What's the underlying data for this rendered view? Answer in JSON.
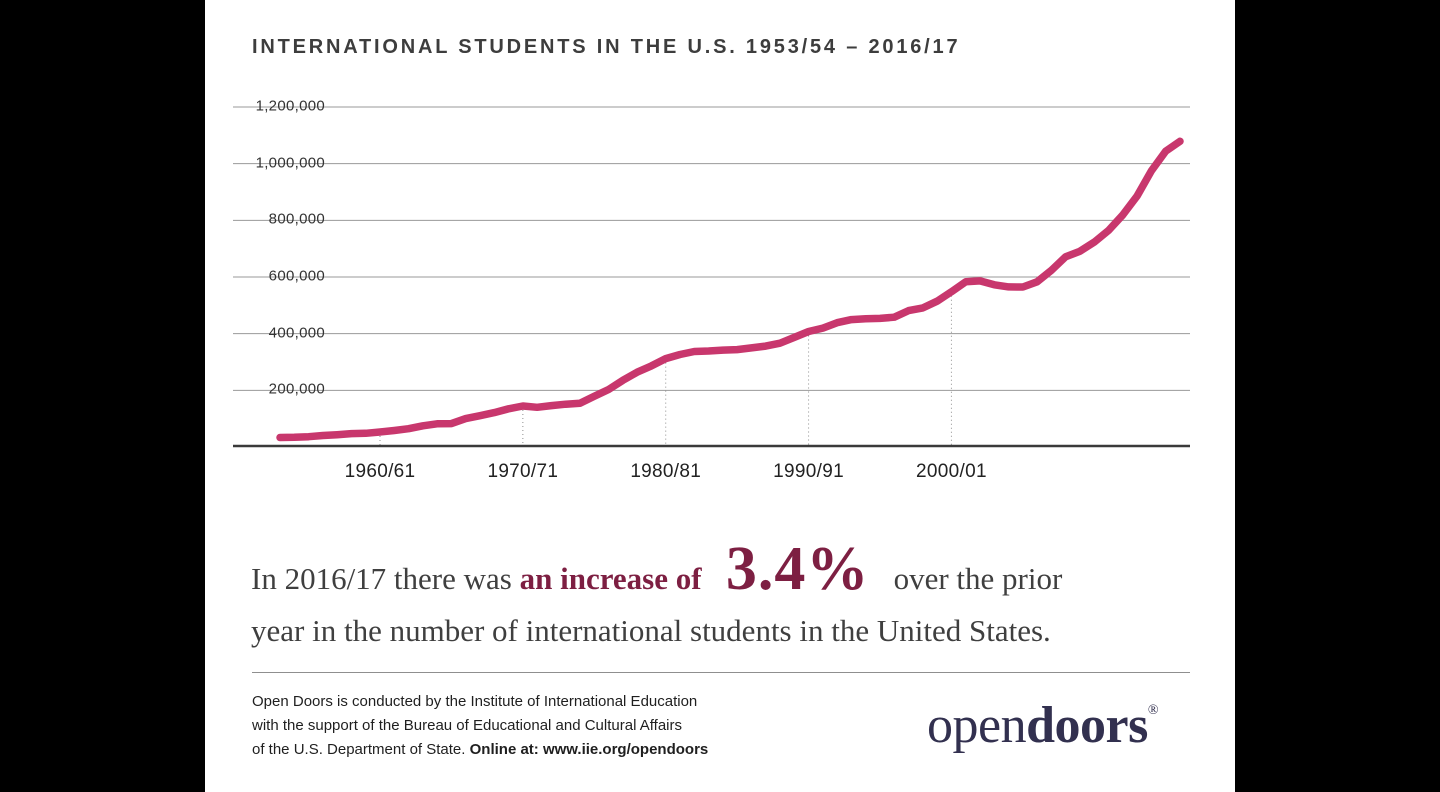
{
  "colors": {
    "line": "#c8376d",
    "accent_maroon": "#7d1f42",
    "text_dark": "#3f3f3f",
    "logo_navy": "#32304f",
    "panel_bg": "#ffffff",
    "letterbox_bg": "#000000"
  },
  "title": "INTERNATIONAL STUDENTS IN THE U.S. 1953/54 – 2016/17",
  "chart_data": {
    "type": "line",
    "title": "International Students in the U.S. 1953/54 - 2016/17",
    "xlabel": "",
    "ylabel": "",
    "ylim": [
      0,
      1200000
    ],
    "grid": true,
    "legend": "none",
    "y_ticks": [
      200000,
      400000,
      600000,
      800000,
      1000000,
      1200000
    ],
    "y_tick_labels": [
      "200,000",
      "400,000",
      "600,000",
      "800,000",
      "1,000,000",
      "1,200,000"
    ],
    "x_tick_years": [
      1960,
      1970,
      1980,
      1990,
      2000
    ],
    "x_tick_labels": [
      "1960/61",
      "1970/71",
      "1980/81",
      "1990/91",
      "2000/01"
    ],
    "x_years": [
      1953,
      1954,
      1955,
      1956,
      1957,
      1958,
      1959,
      1960,
      1961,
      1962,
      1963,
      1964,
      1965,
      1966,
      1967,
      1968,
      1969,
      1970,
      1971,
      1972,
      1973,
      1974,
      1975,
      1976,
      1977,
      1978,
      1979,
      1980,
      1981,
      1982,
      1983,
      1984,
      1985,
      1986,
      1987,
      1988,
      1989,
      1990,
      1991,
      1992,
      1993,
      1994,
      1995,
      1996,
      1997,
      1998,
      1999,
      2000,
      2001,
      2002,
      2003,
      2004,
      2005,
      2006,
      2007,
      2008,
      2009,
      2010,
      2011,
      2012,
      2013,
      2014,
      2015,
      2016
    ],
    "series": [
      {
        "name": "International students in the U.S.",
        "color": "#c8376d",
        "values": [
          33675,
          34232,
          36494,
          40666,
          43391,
          47245,
          48486,
          53107,
          58086,
          64705,
          74814,
          82045,
          82709,
          100262,
          110315,
          121362,
          134959,
          144708,
          140126,
          146097,
          151066,
          154580,
          179344,
          203068,
          235509,
          263938,
          286343,
          311882,
          326299,
          336985,
          338894,
          342113,
          343777,
          349609,
          356187,
          366354,
          386851,
          407529,
          419585,
          438618,
          449749,
          452635,
          453787,
          457984,
          481280,
          490933,
          514723,
          547867,
          582996,
          586323,
          572509,
          565039,
          564766,
          582984,
          623805,
          671616,
          690923,
          723277,
          764495,
          819644,
          886052,
          974926,
          1043839,
          1078822
        ]
      }
    ]
  },
  "callout": {
    "prefix": "In 2016/17 there was ",
    "emphasis": "an increase of ",
    "percent": " 3.4% ",
    "suffix": " over the prior",
    "line2": "year in the number of international students in the United States."
  },
  "footer": {
    "line1": "Open Doors is conducted by the Institute of International Education",
    "line2": "with the support of the Bureau of Educational and Cultural Affairs",
    "line3_normal": "of the U.S. Department of State. ",
    "line3_bold": "Online at: www.iie.org/opendoors"
  },
  "logo": {
    "open": "open",
    "doors": "doors",
    "registered": "®"
  }
}
